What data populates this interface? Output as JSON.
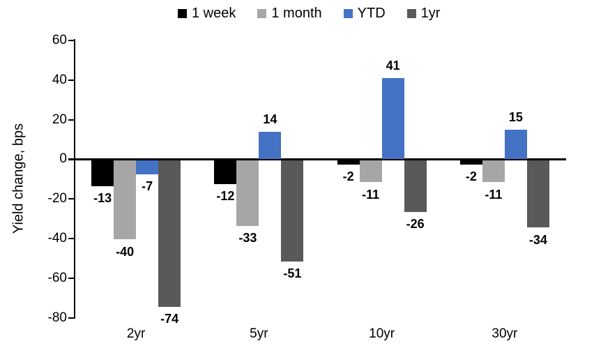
{
  "chart_data": {
    "type": "bar",
    "title": "",
    "ylabel": "Yield change, bps",
    "xlabel": "",
    "categories": [
      "2yr",
      "5yr",
      "10yr",
      "30yr"
    ],
    "series": [
      {
        "name": "1 week",
        "color": "#000000",
        "values": [
          -13,
          -12,
          -2,
          -2
        ]
      },
      {
        "name": "1 month",
        "color": "#a6a6a6",
        "values": [
          -40,
          -33,
          -11,
          -11
        ]
      },
      {
        "name": "YTD",
        "color": "#4472c4",
        "values": [
          -7,
          14,
          41,
          15
        ]
      },
      {
        "name": "1yr",
        "color": "#595959",
        "values": [
          -74,
          -51,
          -26,
          -34
        ]
      }
    ],
    "ylim": [
      -80,
      60
    ],
    "yticks": [
      60,
      40,
      20,
      0,
      -20,
      -40,
      -60,
      -80
    ],
    "grid": false,
    "legend_position": "top",
    "data_labels": "outside-end",
    "axis_color": "#000000"
  }
}
